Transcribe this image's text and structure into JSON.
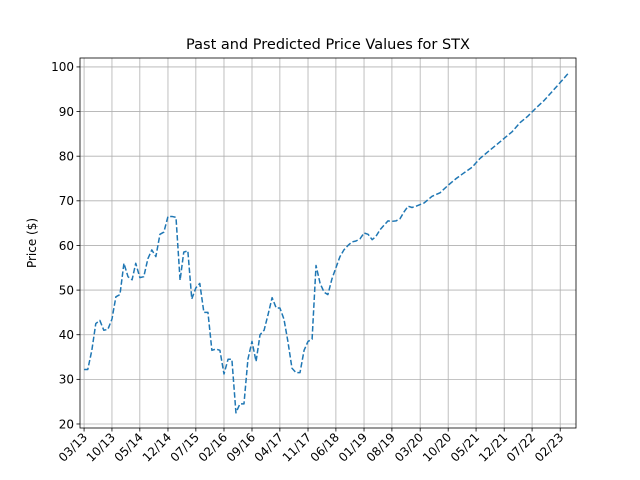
{
  "chart_data": {
    "type": "line",
    "title": "Past and Predicted Price Values for STX",
    "xlabel": "",
    "ylabel": "Price ($)",
    "grid": true,
    "line_style": "dashed",
    "color": "#1f77b4",
    "x_tick_labels": [
      "03/13",
      "10/13",
      "05/14",
      "12/14",
      "07/15",
      "02/16",
      "09/16",
      "04/17",
      "11/17",
      "06/18",
      "01/19",
      "08/19",
      "03/20",
      "10/20",
      "05/21",
      "12/21",
      "07/22",
      "02/23"
    ],
    "y_ticks": [
      20,
      30,
      40,
      50,
      60,
      70,
      80,
      90,
      100
    ],
    "ylim": [
      19.1,
      102
    ],
    "x_step_months": 7,
    "x_range": [
      "2013-01-01",
      "2023-05-01"
    ],
    "series": [
      {
        "points": [
          [
            "2013-02-01",
            32.2
          ],
          [
            "2013-03-01",
            32.2
          ],
          [
            "2013-04-01",
            36.5
          ],
          [
            "2013-05-01",
            42.5
          ],
          [
            "2013-06-01",
            43.2
          ],
          [
            "2013-07-01",
            41.0
          ],
          [
            "2013-08-01",
            41.2
          ],
          [
            "2013-09-01",
            43.5
          ],
          [
            "2013-10-01",
            48.5
          ],
          [
            "2013-11-01",
            49.0
          ],
          [
            "2013-12-01",
            56.0
          ],
          [
            "2014-01-01",
            53.0
          ],
          [
            "2014-02-01",
            52.3
          ],
          [
            "2014-03-01",
            56.0
          ],
          [
            "2014-04-01",
            52.8
          ],
          [
            "2014-05-01",
            53.0
          ],
          [
            "2014-06-01",
            57.0
          ],
          [
            "2014-07-01",
            59.0
          ],
          [
            "2014-08-01",
            57.5
          ],
          [
            "2014-09-01",
            62.5
          ],
          [
            "2014-10-01",
            63.0
          ],
          [
            "2014-11-01",
            66.5
          ],
          [
            "2014-12-01",
            66.5
          ],
          [
            "2015-01-01",
            66.3
          ],
          [
            "2015-02-01",
            52.2
          ],
          [
            "2015-03-01",
            58.5
          ],
          [
            "2015-04-01",
            58.8
          ],
          [
            "2015-05-01",
            48.0
          ],
          [
            "2015-06-01",
            50.5
          ],
          [
            "2015-07-01",
            51.5
          ],
          [
            "2015-08-01",
            45.0
          ],
          [
            "2015-09-01",
            45.0
          ],
          [
            "2015-10-01",
            36.5
          ],
          [
            "2015-11-01",
            36.8
          ],
          [
            "2015-12-01",
            36.5
          ],
          [
            "2016-01-01",
            31.2
          ],
          [
            "2016-02-01",
            34.5
          ],
          [
            "2016-03-01",
            34.5
          ],
          [
            "2016-04-01",
            22.5
          ],
          [
            "2016-05-01",
            24.5
          ],
          [
            "2016-06-01",
            24.5
          ],
          [
            "2016-07-01",
            34.5
          ],
          [
            "2016-08-01",
            38.5
          ],
          [
            "2016-09-01",
            34.0
          ],
          [
            "2016-10-01",
            40.0
          ],
          [
            "2016-11-01",
            41.0
          ],
          [
            "2016-12-01",
            44.5
          ],
          [
            "2017-01-01",
            48.3
          ],
          [
            "2017-02-01",
            46.0
          ],
          [
            "2017-03-01",
            46.0
          ],
          [
            "2017-04-01",
            43.5
          ],
          [
            "2017-05-01",
            38.5
          ],
          [
            "2017-06-01",
            32.5
          ],
          [
            "2017-07-01",
            31.5
          ],
          [
            "2017-08-01",
            31.5
          ],
          [
            "2017-09-01",
            36.5
          ],
          [
            "2017-10-01",
            38.5
          ],
          [
            "2017-11-01",
            39.0
          ],
          [
            "2017-12-01",
            55.5
          ],
          [
            "2018-01-01",
            51.5
          ],
          [
            "2018-02-01",
            49.5
          ],
          [
            "2018-03-01",
            49.0
          ],
          [
            "2018-04-01",
            52.5
          ],
          [
            "2018-05-01",
            55.0
          ],
          [
            "2018-06-01",
            57.5
          ],
          [
            "2018-07-01",
            59.0
          ],
          [
            "2018-08-01",
            60.0
          ],
          [
            "2018-09-01",
            60.8
          ],
          [
            "2018-10-01",
            61.0
          ],
          [
            "2018-11-01",
            61.5
          ],
          [
            "2018-12-01",
            62.8
          ],
          [
            "2019-01-01",
            62.5
          ],
          [
            "2019-02-01",
            61.3
          ],
          [
            "2019-03-01",
            62.0
          ],
          [
            "2019-04-01",
            63.5
          ],
          [
            "2019-05-01",
            64.5
          ],
          [
            "2019-06-01",
            65.5
          ],
          [
            "2019-07-01",
            65.4
          ],
          [
            "2019-08-01",
            65.5
          ],
          [
            "2019-09-01",
            66.0
          ],
          [
            "2019-10-01",
            67.5
          ],
          [
            "2019-11-01",
            68.8
          ],
          [
            "2019-12-01",
            68.5
          ],
          [
            "2020-01-01",
            68.8
          ],
          [
            "2020-03-01",
            69.5
          ],
          [
            "2020-05-01",
            71.0
          ],
          [
            "2020-07-01",
            71.8
          ],
          [
            "2020-09-01",
            73.5
          ],
          [
            "2020-11-01",
            75.0
          ],
          [
            "2021-01-01",
            76.3
          ],
          [
            "2021-03-01",
            77.5
          ],
          [
            "2021-05-01",
            79.5
          ],
          [
            "2021-07-01",
            81.0
          ],
          [
            "2021-09-01",
            82.5
          ],
          [
            "2021-11-01",
            84.0
          ],
          [
            "2022-01-01",
            85.5
          ],
          [
            "2022-03-01",
            87.5
          ],
          [
            "2022-05-01",
            89.0
          ],
          [
            "2022-07-01",
            90.8
          ],
          [
            "2022-09-01",
            92.5
          ],
          [
            "2022-11-01",
            94.5
          ],
          [
            "2023-01-01",
            96.5
          ],
          [
            "2023-03-01",
            98.5
          ]
        ]
      }
    ]
  }
}
